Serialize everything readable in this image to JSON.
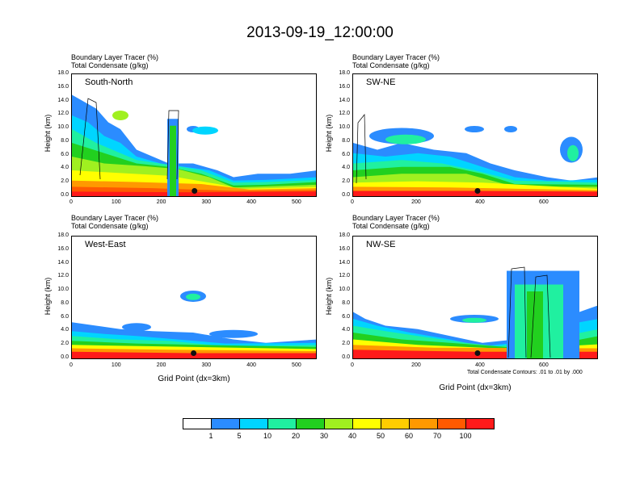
{
  "title": "2013-09-19_12:00:00",
  "panels": [
    {
      "id": "sn",
      "name": "South-North",
      "field1": "Boundary Layer Tracer   (%)",
      "field2": "Total Condensate   (g/kg)",
      "ylabel": "Height (km)",
      "xticks": [
        "0",
        "100",
        "200",
        "300",
        "400",
        "500"
      ],
      "xlabel": ""
    },
    {
      "id": "swne",
      "name": "SW-NE",
      "field1": "Boundary Layer Tracer   (%)",
      "field2": "Total Condensate   (g/kg)",
      "ylabel": "Height (km)",
      "xticks": [
        "0",
        "200",
        "400",
        "600"
      ],
      "xlabel": ""
    },
    {
      "id": "we",
      "name": "West-East",
      "field1": "Boundary Layer Tracer   (%)",
      "field2": "Total Condensate   (g/kg)",
      "ylabel": "Height (km)",
      "xticks": [
        "0",
        "100",
        "200",
        "300",
        "400",
        "500"
      ],
      "xlabel": "Grid Point (dx=3km)"
    },
    {
      "id": "nwse",
      "name": "NW-SE",
      "field1": "Boundary Layer Tracer   (%)",
      "field2": "Total Condensate   (g/kg)",
      "ylabel": "Height (km)",
      "xticks": [
        "0",
        "200",
        "400",
        "600"
      ],
      "xlabel": "Grid Point (dx=3km)"
    }
  ],
  "yticks": [
    "0.0",
    "2.0",
    "4.0",
    "6.0",
    "8.0",
    "10.0",
    "12.0",
    "14.0",
    "16.0",
    "18.0"
  ],
  "contour_note": "Total Condensate Contours: .01 to .01 by .000",
  "colorbar": {
    "colors": [
      "#ffffff",
      "#2b8cff",
      "#00d5ff",
      "#20f0a0",
      "#22d01f",
      "#a0f020",
      "#ffff00",
      "#ffcc00",
      "#ff9900",
      "#ff5a00",
      "#ff1a1a"
    ],
    "labels": [
      "1",
      "5",
      "10",
      "20",
      "30",
      "40",
      "50",
      "60",
      "70",
      "100"
    ]
  },
  "chart_data": [
    {
      "type": "heatmap",
      "title": "South-North",
      "xlabel": "",
      "ylabel": "Height (km)",
      "xlim": [
        0,
        545
      ],
      "ylim": [
        0,
        18
      ],
      "value_unit": "%",
      "marker_x": 272,
      "marker_y": 1.0
    },
    {
      "type": "heatmap",
      "title": "SW-NE",
      "xlabel": "",
      "ylabel": "Height (km)",
      "xlim": [
        0,
        770
      ],
      "ylim": [
        0,
        18
      ],
      "value_unit": "%",
      "marker_x": 390,
      "marker_y": 1.0
    },
    {
      "type": "heatmap",
      "title": "West-East",
      "xlabel": "Grid Point (dx=3km)",
      "ylabel": "Height (km)",
      "xlim": [
        0,
        545
      ],
      "ylim": [
        0,
        18
      ],
      "value_unit": "%",
      "marker_x": 270,
      "marker_y": 1.0
    },
    {
      "type": "heatmap",
      "title": "NW-SE",
      "xlabel": "Grid Point (dx=3km)",
      "ylabel": "Height (km)",
      "xlim": [
        0,
        770
      ],
      "ylim": [
        0,
        18
      ],
      "value_unit": "%",
      "marker_x": 390,
      "marker_y": 1.0
    }
  ]
}
